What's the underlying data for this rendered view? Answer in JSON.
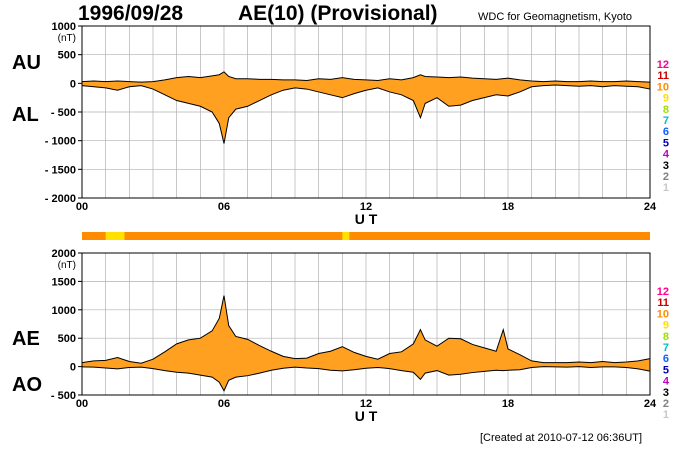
{
  "header": {
    "date": "1996/09/28",
    "title": "AE(10) (Provisional)",
    "source": "WDC for Geomagnetism, Kyoto"
  },
  "footer": {
    "created": "[Created at 2010-07-12 06:36UT]"
  },
  "panel_labels": {
    "top": [
      "AU",
      "AL"
    ],
    "bottom": [
      "AE",
      "AO"
    ]
  },
  "colors": {
    "fill": "#ffa020",
    "line": "#000000",
    "grid": "#b0b0b0",
    "station_scale": {
      "12": "#ff0090",
      "11": "#cc0000",
      "10": "#ff8c00",
      "9": "#ffe000",
      "8": "#a0e000",
      "7": "#00c0c0",
      "6": "#1060ff",
      "5": "#0000b0",
      "4": "#c000c0",
      "3": "#000000",
      "2": "#808080",
      "1": "#c8c8c8"
    }
  },
  "station_scale_labels": [
    "12",
    "11",
    "10",
    "9",
    "8",
    "7",
    "6",
    "5",
    "4",
    "3",
    "2",
    "1"
  ],
  "station_count_bar": {
    "segments": [
      {
        "from": 0,
        "to": 1.0,
        "stations": 10
      },
      {
        "from": 1.0,
        "to": 1.8,
        "stations": 9
      },
      {
        "from": 1.8,
        "to": 11.0,
        "stations": 10
      },
      {
        "from": 11.0,
        "to": 11.3,
        "stations": 9
      },
      {
        "from": 11.3,
        "to": 24,
        "stations": 10
      }
    ]
  },
  "chart_data": [
    {
      "type": "area",
      "name": "AU/AL",
      "unit": "(nT)",
      "ylim": [
        -2000,
        1000
      ],
      "yticks": [
        1000,
        500,
        0,
        -500,
        -1000,
        -1500,
        -2000
      ],
      "ytick_labels": [
        "1000",
        "500",
        "0",
        "- 500",
        "- 1000",
        "- 1500",
        "- 2000"
      ],
      "xlim": [
        0,
        24
      ],
      "xticks": [
        0,
        6,
        12,
        18,
        24
      ],
      "xtick_labels": [
        "00",
        "06",
        "12",
        "18",
        "24"
      ],
      "xlabel": "U T",
      "grid": true,
      "series": [
        {
          "name": "AU",
          "x": [
            0,
            0.5,
            1,
            1.5,
            2,
            2.5,
            3,
            3.5,
            4,
            4.5,
            5,
            5.5,
            5.8,
            6,
            6.2,
            6.5,
            7,
            7.5,
            8,
            8.5,
            9,
            9.5,
            10,
            10.5,
            11,
            11.5,
            12,
            12.5,
            13,
            13.5,
            14,
            14.3,
            14.5,
            15,
            15.5,
            16,
            16.5,
            17,
            17.5,
            18,
            18.5,
            19,
            19.5,
            20,
            20.5,
            21,
            21.5,
            22,
            22.5,
            23,
            23.5,
            24
          ],
          "values": [
            30,
            40,
            30,
            40,
            30,
            20,
            30,
            60,
            100,
            120,
            100,
            130,
            150,
            200,
            120,
            80,
            80,
            70,
            70,
            60,
            60,
            50,
            80,
            70,
            100,
            70,
            60,
            50,
            80,
            60,
            100,
            150,
            120,
            110,
            100,
            110,
            90,
            80,
            70,
            90,
            60,
            40,
            30,
            40,
            30,
            30,
            40,
            30,
            30,
            40,
            30,
            20
          ]
        },
        {
          "name": "AL",
          "x": [
            0,
            0.5,
            1,
            1.5,
            2,
            2.5,
            3,
            3.5,
            4,
            4.5,
            5,
            5.5,
            5.8,
            6,
            6.2,
            6.5,
            7,
            7.5,
            8,
            8.5,
            9,
            9.5,
            10,
            10.5,
            11,
            11.5,
            12,
            12.5,
            13,
            13.5,
            14,
            14.3,
            14.5,
            15,
            15.5,
            16,
            16.5,
            17,
            17.5,
            18,
            18.5,
            19,
            19.5,
            20,
            20.5,
            21,
            21.5,
            22,
            22.5,
            23,
            23.5,
            24
          ],
          "values": [
            -40,
            -60,
            -80,
            -120,
            -60,
            -40,
            -100,
            -200,
            -300,
            -350,
            -400,
            -500,
            -700,
            -1050,
            -600,
            -450,
            -400,
            -300,
            -200,
            -120,
            -80,
            -100,
            -150,
            -200,
            -250,
            -180,
            -120,
            -80,
            -150,
            -200,
            -300,
            -600,
            -350,
            -250,
            -400,
            -380,
            -300,
            -250,
            -200,
            -220,
            -150,
            -60,
            -40,
            -30,
            -40,
            -50,
            -40,
            -60,
            -40,
            -50,
            -60,
            -100
          ]
        }
      ]
    },
    {
      "type": "area",
      "name": "AE/AO",
      "unit": "(nT)",
      "ylim": [
        -500,
        2000
      ],
      "yticks": [
        2000,
        1500,
        1000,
        500,
        0,
        -500
      ],
      "ytick_labels": [
        "2000",
        "1500",
        "1000",
        "500",
        "0",
        "- 500"
      ],
      "xlim": [
        0,
        24
      ],
      "xticks": [
        0,
        6,
        12,
        18,
        24
      ],
      "xtick_labels": [
        "00",
        "06",
        "12",
        "18",
        "24"
      ],
      "xlabel": "U T",
      "grid": true,
      "series": [
        {
          "name": "AE",
          "x": [
            0,
            0.5,
            1,
            1.5,
            2,
            2.5,
            3,
            3.5,
            4,
            4.5,
            5,
            5.5,
            5.8,
            6,
            6.2,
            6.5,
            7,
            7.5,
            8,
            8.5,
            9,
            9.5,
            10,
            10.5,
            11,
            11.5,
            12,
            12.5,
            13,
            13.5,
            14,
            14.3,
            14.5,
            15,
            15.5,
            16,
            16.5,
            17,
            17.5,
            17.8,
            18,
            18.5,
            19,
            19.5,
            20,
            20.5,
            21,
            21.5,
            22,
            22.5,
            23,
            23.5,
            24
          ],
          "values": [
            70,
            100,
            110,
            160,
            90,
            60,
            130,
            260,
            400,
            470,
            500,
            630,
            850,
            1250,
            720,
            530,
            480,
            370,
            270,
            180,
            140,
            150,
            230,
            270,
            350,
            250,
            180,
            130,
            230,
            260,
            400,
            650,
            470,
            360,
            500,
            490,
            390,
            330,
            270,
            650,
            310,
            210,
            100,
            70,
            70,
            70,
            80,
            70,
            90,
            70,
            80,
            100,
            140
          ]
        },
        {
          "name": "AO",
          "x": [
            0,
            0.5,
            1,
            1.5,
            2,
            2.5,
            3,
            3.5,
            4,
            4.5,
            5,
            5.5,
            5.8,
            6,
            6.2,
            6.5,
            7,
            7.5,
            8,
            8.5,
            9,
            9.5,
            10,
            10.5,
            11,
            11.5,
            12,
            12.5,
            13,
            13.5,
            14,
            14.3,
            14.5,
            15,
            15.5,
            16,
            16.5,
            17,
            17.5,
            17.8,
            18,
            18.5,
            19,
            19.5,
            20,
            20.5,
            21,
            21.5,
            22,
            22.5,
            23,
            23.5,
            24
          ],
          "values": [
            -5,
            -10,
            -25,
            -40,
            -15,
            -10,
            -35,
            -70,
            -100,
            -115,
            -150,
            -185,
            -275,
            -425,
            -240,
            -185,
            -160,
            -115,
            -65,
            -30,
            -10,
            -25,
            -35,
            -65,
            -75,
            -55,
            -30,
            -15,
            -35,
            -70,
            -100,
            -225,
            -115,
            -70,
            -150,
            -135,
            -105,
            -85,
            -65,
            -70,
            -65,
            -55,
            -15,
            0,
            -5,
            -10,
            0,
            -15,
            -5,
            -5,
            -15,
            -40,
            -80
          ]
        }
      ]
    }
  ]
}
